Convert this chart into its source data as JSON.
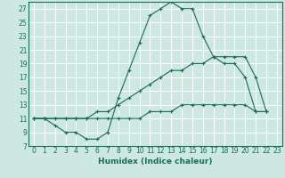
{
  "xlabel": "Humidex (Indice chaleur)",
  "bg_color": "#cce8e0",
  "grid_color": "#ffffff",
  "line_color": "#1a6b5a",
  "xlim": [
    -0.5,
    23.5
  ],
  "ylim": [
    7,
    28
  ],
  "yticks": [
    7,
    9,
    11,
    13,
    15,
    17,
    19,
    21,
    23,
    25,
    27
  ],
  "xticks": [
    0,
    1,
    2,
    3,
    4,
    5,
    6,
    7,
    8,
    9,
    10,
    11,
    12,
    13,
    14,
    15,
    16,
    17,
    18,
    19,
    20,
    21,
    22,
    23
  ],
  "series": [
    {
      "x": [
        0,
        1,
        2,
        3,
        4,
        5,
        6,
        7,
        8,
        9,
        10,
        11,
        12,
        13,
        14,
        15,
        16,
        17,
        18,
        19,
        20,
        21,
        22
      ],
      "y": [
        11,
        11,
        10,
        9,
        9,
        8,
        8,
        9,
        14,
        18,
        22,
        26,
        27,
        28,
        27,
        27,
        23,
        20,
        20,
        20,
        20,
        17,
        12
      ]
    },
    {
      "x": [
        0,
        1,
        2,
        3,
        4,
        5,
        6,
        7,
        8,
        9,
        10,
        11,
        12,
        13,
        14,
        15,
        16,
        17,
        18,
        19,
        20,
        21,
        22
      ],
      "y": [
        11,
        11,
        11,
        11,
        11,
        11,
        12,
        12,
        13,
        14,
        15,
        16,
        17,
        18,
        18,
        19,
        19,
        20,
        19,
        19,
        17,
        12,
        12
      ]
    },
    {
      "x": [
        0,
        1,
        2,
        3,
        4,
        5,
        6,
        7,
        8,
        9,
        10,
        11,
        12,
        13,
        14,
        15,
        16,
        17,
        18,
        19,
        20,
        21,
        22
      ],
      "y": [
        11,
        11,
        11,
        11,
        11,
        11,
        11,
        11,
        11,
        11,
        11,
        12,
        12,
        12,
        13,
        13,
        13,
        13,
        13,
        13,
        13,
        12,
        12
      ]
    }
  ]
}
